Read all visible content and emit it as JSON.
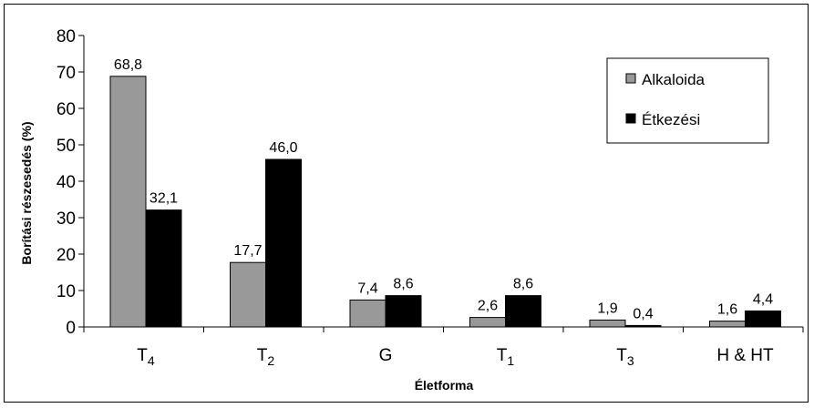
{
  "chart_data": {
    "type": "bar",
    "categories": [
      "T4",
      "T2",
      "G",
      "T1",
      "T3",
      "H & HT"
    ],
    "category_labels": [
      {
        "base": "T",
        "sub": "4"
      },
      {
        "base": "T",
        "sub": "2"
      },
      {
        "base": "G",
        "sub": ""
      },
      {
        "base": "T",
        "sub": "1"
      },
      {
        "base": "T",
        "sub": "3"
      },
      {
        "base": "H & HT",
        "sub": ""
      }
    ],
    "series": [
      {
        "name": "Alkaloida",
        "values": [
          68.8,
          17.7,
          7.4,
          2.6,
          1.9,
          1.6
        ],
        "labels": [
          "68,8",
          "17,7",
          "7,4",
          "2,6",
          "1,9",
          "1,6"
        ],
        "color": "#999999"
      },
      {
        "name": "Étkezési",
        "values": [
          32.1,
          46.0,
          8.6,
          8.6,
          0.4,
          4.4
        ],
        "labels": [
          "32,1",
          "46,0",
          "8,6",
          "8,6",
          "0,4",
          "4,4"
        ],
        "color": "#000000"
      }
    ],
    "xlabel": "Életforma",
    "ylabel": "Borítási részesedés  (%)",
    "ylim": [
      0,
      80
    ],
    "yticks": [
      0,
      10,
      20,
      30,
      40,
      50,
      60,
      70,
      80
    ],
    "grid": false,
    "legend_position": "top-right"
  }
}
